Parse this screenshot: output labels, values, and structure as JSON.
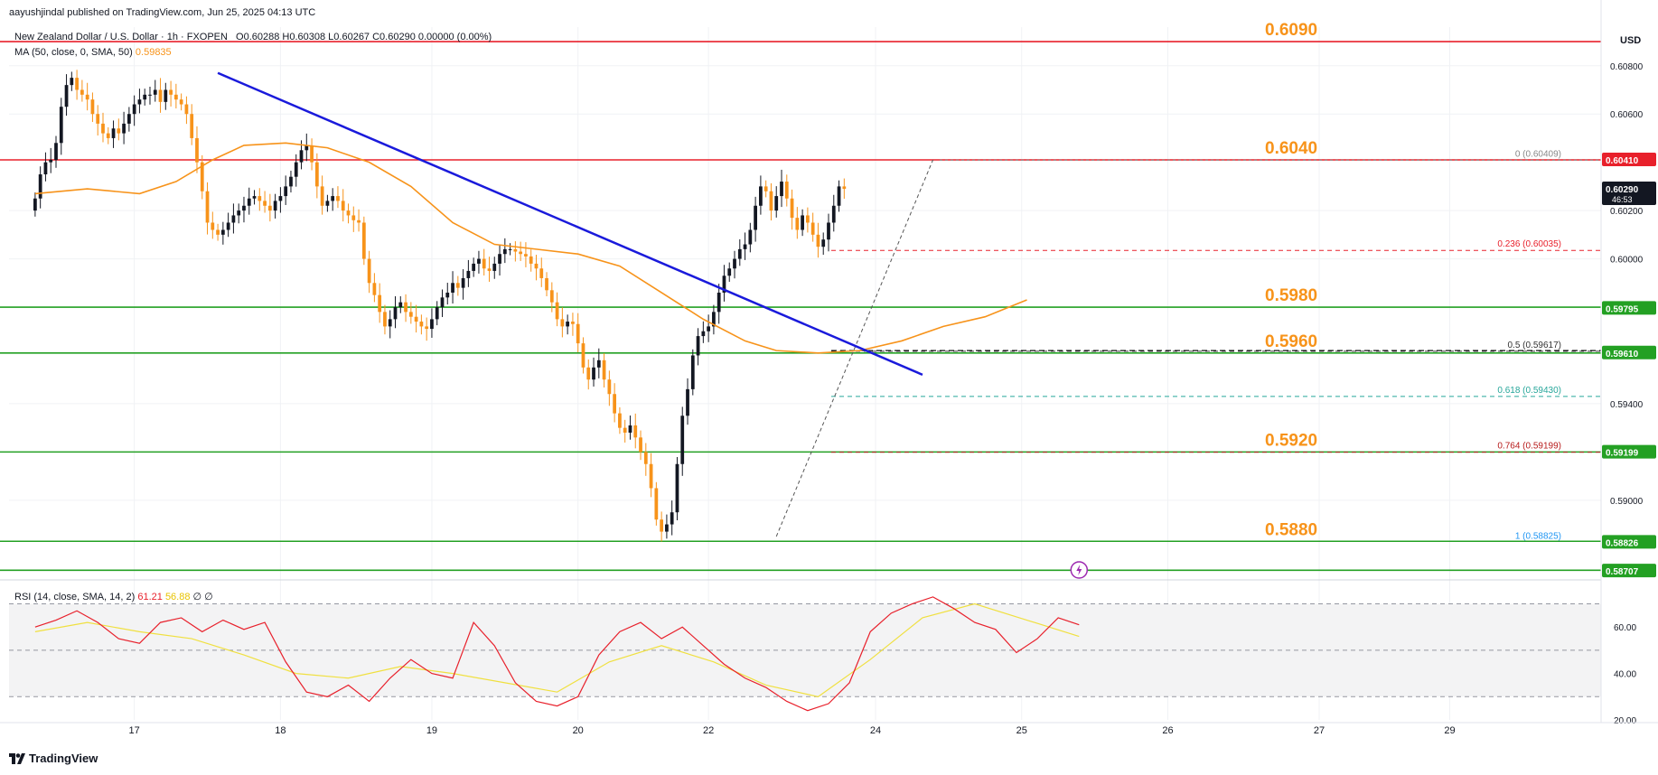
{
  "header": {
    "author_line": "aayushjindal published on TradingView.com, Jun 25, 2025 04:13 UTC",
    "symbol_name": "New Zealand Dollar / U.S. Dollar · 1h · FXOPEN",
    "ohlc": "O0.60288  H0.60308  L0.60267  C0.60290  0.00000 (0.00%)",
    "ma_label": "MA (50, close, 0, SMA, 50)",
    "ma_value": "0.59835",
    "rsi_label": "RSI (14, close, SMA, 14, 2)",
    "rsi_value": "61.21",
    "rsi_ma_value": "56.88",
    "rsi_tail": "∅  ∅"
  },
  "footer": {
    "logo_text": "TradingView"
  },
  "colors": {
    "bull": "#131722",
    "bear": "#f7931a",
    "ma": "#f7931a",
    "trendline": "#1a1adb",
    "support": "#23a023",
    "resistance": "#e8202b",
    "rsi": "#e8202b",
    "rsi_ma": "#f0e040",
    "fib_dash": "#555555"
  },
  "chart_data": {
    "type": "candlestick",
    "title": "New Zealand Dollar / U.S. Dollar · 1h · FXOPEN",
    "currency": "USD",
    "ylim": [
      0.587,
      0.6096
    ],
    "y_ticks": [
      "0.60800",
      "0.60600",
      "0.60200",
      "0.60000",
      "0.59400",
      "0.59000"
    ],
    "y_tick_values": [
      0.608,
      0.606,
      0.602,
      0.6,
      0.594,
      0.59
    ],
    "x_index_range": [
      -5,
      300
    ],
    "x_ticks": [
      {
        "label": "17",
        "index": 19
      },
      {
        "label": "18",
        "index": 47
      },
      {
        "label": "19",
        "index": 76
      },
      {
        "label": "20",
        "index": 104
      },
      {
        "label": "22",
        "index": 129
      },
      {
        "label": "24",
        "index": 161
      },
      {
        "label": "25",
        "index": 189
      },
      {
        "label": "26",
        "index": 217
      },
      {
        "label": "27",
        "index": 246
      },
      {
        "label": "29",
        "index": 271
      }
    ],
    "candles_close": [
      0.6025,
      0.6035,
      0.604,
      0.6041,
      0.6048,
      0.6063,
      0.6072,
      0.6075,
      0.607,
      0.6068,
      0.6066,
      0.606,
      0.6056,
      0.6052,
      0.605,
      0.6054,
      0.6052,
      0.6056,
      0.606,
      0.6064,
      0.6066,
      0.6068,
      0.6068,
      0.607,
      0.6065,
      0.607,
      0.6068,
      0.6066,
      0.6064,
      0.606,
      0.605,
      0.604,
      0.6028,
      0.6015,
      0.6012,
      0.601,
      0.6012,
      0.6015,
      0.6018,
      0.602,
      0.6022,
      0.6025,
      0.6026,
      0.6024,
      0.6022,
      0.602,
      0.6024,
      0.6026,
      0.603,
      0.6034,
      0.604,
      0.6045,
      0.6047,
      0.604,
      0.603,
      0.6022,
      0.6024,
      0.6026,
      0.6024,
      0.602,
      0.6018,
      0.6016,
      0.6015,
      0.6,
      0.599,
      0.5985,
      0.5978,
      0.5972,
      0.5975,
      0.598,
      0.5982,
      0.5978,
      0.5976,
      0.5974,
      0.5972,
      0.5971,
      0.5975,
      0.598,
      0.5984,
      0.5986,
      0.599,
      0.5988,
      0.5992,
      0.5995,
      0.5998,
      0.6,
      0.5996,
      0.5995,
      0.5998,
      0.6002,
      0.6004,
      0.6004,
      0.6003,
      0.6002,
      0.6001,
      0.5998,
      0.5996,
      0.5992,
      0.5987,
      0.5982,
      0.5975,
      0.5972,
      0.5974,
      0.5973,
      0.5965,
      0.5955,
      0.595,
      0.5955,
      0.5958,
      0.595,
      0.5944,
      0.5936,
      0.593,
      0.5928,
      0.5931,
      0.5926,
      0.592,
      0.5915,
      0.5905,
      0.5892,
      0.5887,
      0.589,
      0.5895,
      0.5915,
      0.5935,
      0.5946,
      0.596,
      0.5968,
      0.597,
      0.5972,
      0.5978,
      0.5986,
      0.5993,
      0.5996,
      0.6,
      0.6004,
      0.6006,
      0.6012,
      0.6022,
      0.603,
      0.6028,
      0.602,
      0.6026,
      0.6032,
      0.6025,
      0.6017,
      0.6012,
      0.6018,
      0.6015,
      0.601,
      0.6005,
      0.6008,
      0.6015,
      0.6022,
      0.603,
      0.6029
    ],
    "candle_first_index": 0,
    "candle_open_first": 0.602,
    "ma50": [
      [
        0,
        0.6027
      ],
      [
        10,
        0.6029
      ],
      [
        20,
        0.6027
      ],
      [
        27,
        0.6032
      ],
      [
        34,
        0.6041
      ],
      [
        40,
        0.6047
      ],
      [
        48,
        0.6048
      ],
      [
        56,
        0.6046
      ],
      [
        64,
        0.604
      ],
      [
        72,
        0.603
      ],
      [
        80,
        0.6015
      ],
      [
        88,
        0.6006
      ],
      [
        96,
        0.6004
      ],
      [
        104,
        0.6002
      ],
      [
        112,
        0.5997
      ],
      [
        120,
        0.5986
      ],
      [
        128,
        0.5975
      ],
      [
        136,
        0.5966
      ],
      [
        142,
        0.5962
      ],
      [
        150,
        0.5961
      ],
      [
        158,
        0.5962
      ],
      [
        166,
        0.5966
      ],
      [
        174,
        0.5972
      ],
      [
        182,
        0.5976
      ],
      [
        190,
        0.5983
      ]
    ],
    "trendline": {
      "from": [
        35,
        0.6077
      ],
      "to": [
        170,
        0.5952
      ]
    },
    "fib_diagonal": {
      "from": [
        142,
        0.5885
      ],
      "to": [
        172,
        0.6041
      ]
    },
    "horizontal_levels": [
      {
        "label": "0.6090",
        "price": 0.609,
        "kind": "resistance"
      },
      {
        "label": "0.6040",
        "price": 0.6041,
        "kind": "resistance"
      },
      {
        "label": "0.5980",
        "price": 0.598,
        "kind": "support"
      },
      {
        "label": "0.5960",
        "price": 0.5961,
        "kind": "support"
      },
      {
        "label": "0.5920",
        "price": 0.592,
        "kind": "support"
      },
      {
        "label": "0.5880",
        "price": 0.5883,
        "kind": "support"
      },
      {
        "label": "",
        "price": 0.5871,
        "kind": "support"
      }
    ],
    "fib_levels": [
      {
        "label": "0 (0.60409)",
        "price": 0.60409,
        "color": "#888888"
      },
      {
        "label": "0.236 (0.60035)",
        "price": 0.60035,
        "color": "#e8202b"
      },
      {
        "label": "0.5 (0.59617)",
        "price": 0.59617,
        "color": "#333333"
      },
      {
        "label": "0.618 (0.59430)",
        "price": 0.5943,
        "color": "#26a69a"
      },
      {
        "label": "0.764 (0.59199)",
        "price": 0.59199,
        "color": "#b71c1c"
      },
      {
        "label": "1 (0.58825)",
        "price": 0.58825,
        "color": "#2196f3"
      }
    ],
    "price_tags": [
      {
        "label": "0.60410",
        "price": 0.6041,
        "color": "#e8202b"
      },
      {
        "label": "0.60290",
        "price": 0.6029,
        "color": "#131722",
        "sub": "46:53"
      },
      {
        "label": "0.59795",
        "price": 0.59795,
        "color": "#23a023"
      },
      {
        "label": "0.59610",
        "price": 0.5961,
        "color": "#23a023"
      },
      {
        "label": "0.59199",
        "price": 0.59199,
        "color": "#23a023"
      },
      {
        "label": "0.58826",
        "price": 0.58826,
        "color": "#23a023"
      },
      {
        "label": "0.58707",
        "price": 0.58707,
        "color": "#23a023"
      }
    ],
    "rsi": {
      "ylim": [
        20,
        78
      ],
      "ticks": [
        "60.00",
        "40.00",
        "20.00"
      ],
      "tick_values": [
        60,
        40,
        20
      ],
      "band_upper": 70,
      "band_mid": 50,
      "band_lower": 30,
      "values": [
        [
          0,
          60
        ],
        [
          4,
          63
        ],
        [
          8,
          67
        ],
        [
          12,
          62
        ],
        [
          16,
          55
        ],
        [
          20,
          53
        ],
        [
          24,
          62
        ],
        [
          28,
          64
        ],
        [
          32,
          58
        ],
        [
          36,
          63
        ],
        [
          40,
          59
        ],
        [
          44,
          62
        ],
        [
          48,
          45
        ],
        [
          52,
          32
        ],
        [
          56,
          30
        ],
        [
          60,
          35
        ],
        [
          64,
          28
        ],
        [
          68,
          38
        ],
        [
          72,
          46
        ],
        [
          76,
          40
        ],
        [
          80,
          38
        ],
        [
          84,
          62
        ],
        [
          88,
          52
        ],
        [
          92,
          36
        ],
        [
          96,
          28
        ],
        [
          100,
          26
        ],
        [
          104,
          30
        ],
        [
          108,
          48
        ],
        [
          112,
          58
        ],
        [
          116,
          62
        ],
        [
          120,
          55
        ],
        [
          124,
          60
        ],
        [
          128,
          52
        ],
        [
          132,
          44
        ],
        [
          136,
          38
        ],
        [
          140,
          34
        ],
        [
          144,
          28
        ],
        [
          148,
          24
        ],
        [
          152,
          27
        ],
        [
          156,
          36
        ],
        [
          160,
          58
        ],
        [
          164,
          66
        ],
        [
          168,
          70
        ],
        [
          172,
          73
        ],
        [
          176,
          68
        ],
        [
          180,
          62
        ],
        [
          184,
          59
        ],
        [
          188,
          49
        ],
        [
          192,
          55
        ],
        [
          196,
          64
        ],
        [
          200,
          61
        ]
      ],
      "ma_values": [
        [
          0,
          58
        ],
        [
          10,
          62
        ],
        [
          20,
          58
        ],
        [
          30,
          55
        ],
        [
          40,
          48
        ],
        [
          50,
          40
        ],
        [
          60,
          38
        ],
        [
          70,
          43
        ],
        [
          80,
          40
        ],
        [
          90,
          36
        ],
        [
          100,
          32
        ],
        [
          110,
          45
        ],
        [
          120,
          52
        ],
        [
          130,
          45
        ],
        [
          140,
          35
        ],
        [
          150,
          30
        ],
        [
          160,
          46
        ],
        [
          170,
          64
        ],
        [
          180,
          70
        ],
        [
          190,
          63
        ],
        [
          200,
          56
        ]
      ]
    },
    "event_marker_index": 200
  }
}
